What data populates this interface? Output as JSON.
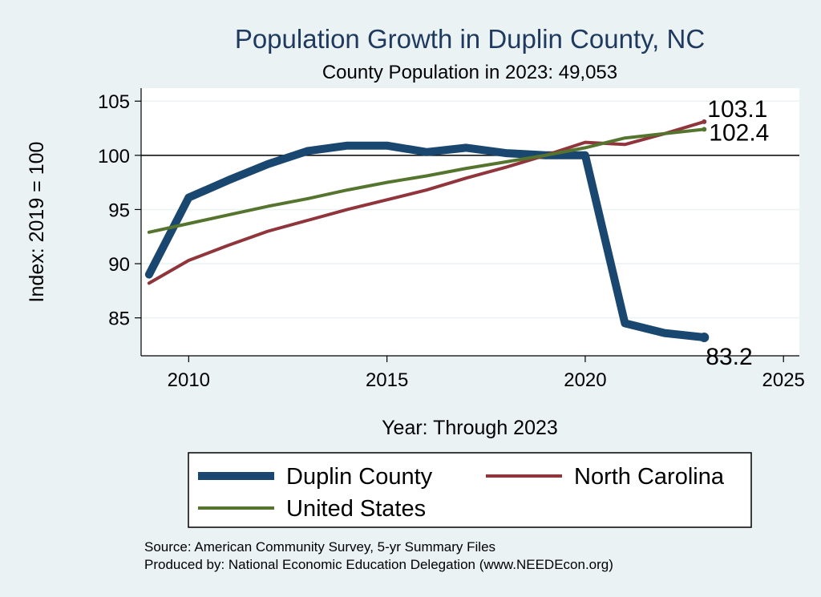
{
  "chart_data": {
    "type": "line",
    "title": "Population Growth in Duplin County, NC",
    "subtitle": "County Population in 2023: 49,053",
    "xlabel": "Year: Through 2023",
    "ylabel": "Index: 2019 = 100",
    "xlim": [
      2008.8,
      2025.4
    ],
    "ylim": [
      81.5,
      106.2
    ],
    "x_ticks": [
      2010,
      2015,
      2020,
      2025
    ],
    "y_ticks": [
      85,
      90,
      95,
      100,
      105
    ],
    "reference_line": 100,
    "x": [
      2009,
      2010,
      2011,
      2012,
      2013,
      2014,
      2015,
      2016,
      2017,
      2018,
      2019,
      2020,
      2021,
      2022,
      2023
    ],
    "series": [
      {
        "name": "Duplin  County",
        "color": "#1a476f",
        "values": [
          89.0,
          96.1,
          97.7,
          99.2,
          100.4,
          100.9,
          100.9,
          100.3,
          100.7,
          100.2,
          100.0,
          100.0,
          84.5,
          83.6,
          83.2
        ],
        "end_label": "83.2"
      },
      {
        "name": "North Carolina",
        "color": "#90353b",
        "values": [
          88.2,
          90.3,
          91.7,
          93.0,
          94.0,
          95.0,
          95.9,
          96.8,
          97.9,
          98.9,
          100.0,
          101.2,
          101.0,
          102.0,
          103.1
        ],
        "end_label": "103.1"
      },
      {
        "name": "United States",
        "color": "#55752f",
        "values": [
          92.9,
          93.7,
          94.5,
          95.3,
          96.0,
          96.8,
          97.5,
          98.1,
          98.8,
          99.4,
          100.0,
          100.7,
          101.6,
          102.0,
          102.4
        ],
        "end_label": "102.4"
      }
    ],
    "legend_position": "bottom",
    "source_lines": [
      "Source: American Community Survey, 5-yr Summary Files",
      "Produced by: National Economic Education Delegation (www.NEEDEcon.org)"
    ]
  }
}
